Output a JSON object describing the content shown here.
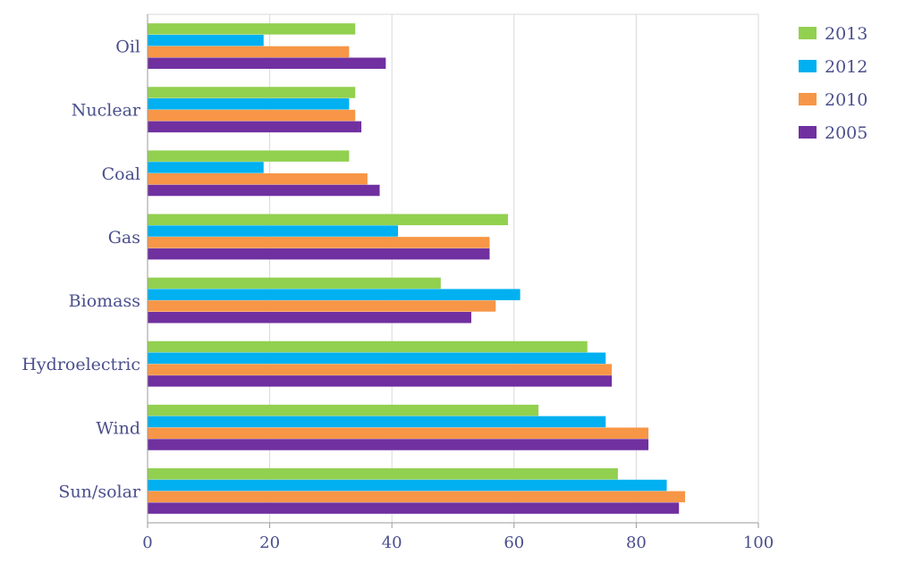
{
  "chart_data": {
    "type": "bar",
    "orientation": "horizontal",
    "title": "",
    "xlabel": "",
    "ylabel": "",
    "xlim": [
      0,
      100
    ],
    "xticks": [
      0,
      20,
      40,
      60,
      80,
      100
    ],
    "xtick_labels": [
      "0",
      "20",
      "40",
      "60",
      "80",
      "100"
    ],
    "grid": "vertical",
    "legend_position": "top-right",
    "categories": [
      "Oil",
      "Nuclear",
      "Coal",
      "Gas",
      "Biomass",
      "Hydroelectric",
      "Wind",
      "Sun/solar"
    ],
    "series": [
      {
        "name": "2013",
        "color": "#92d050",
        "values": [
          34,
          34,
          33,
          59,
          48,
          72,
          64,
          77
        ]
      },
      {
        "name": "2012",
        "color": "#00b0f0",
        "values": [
          19,
          33,
          19,
          41,
          61,
          75,
          75,
          85
        ]
      },
      {
        "name": "2010",
        "color": "#f79646",
        "values": [
          33,
          34,
          36,
          56,
          57,
          76,
          82,
          88
        ]
      },
      {
        "name": "2005",
        "color": "#7030a0",
        "values": [
          39,
          35,
          38,
          56,
          53,
          76,
          82,
          87
        ]
      }
    ]
  }
}
